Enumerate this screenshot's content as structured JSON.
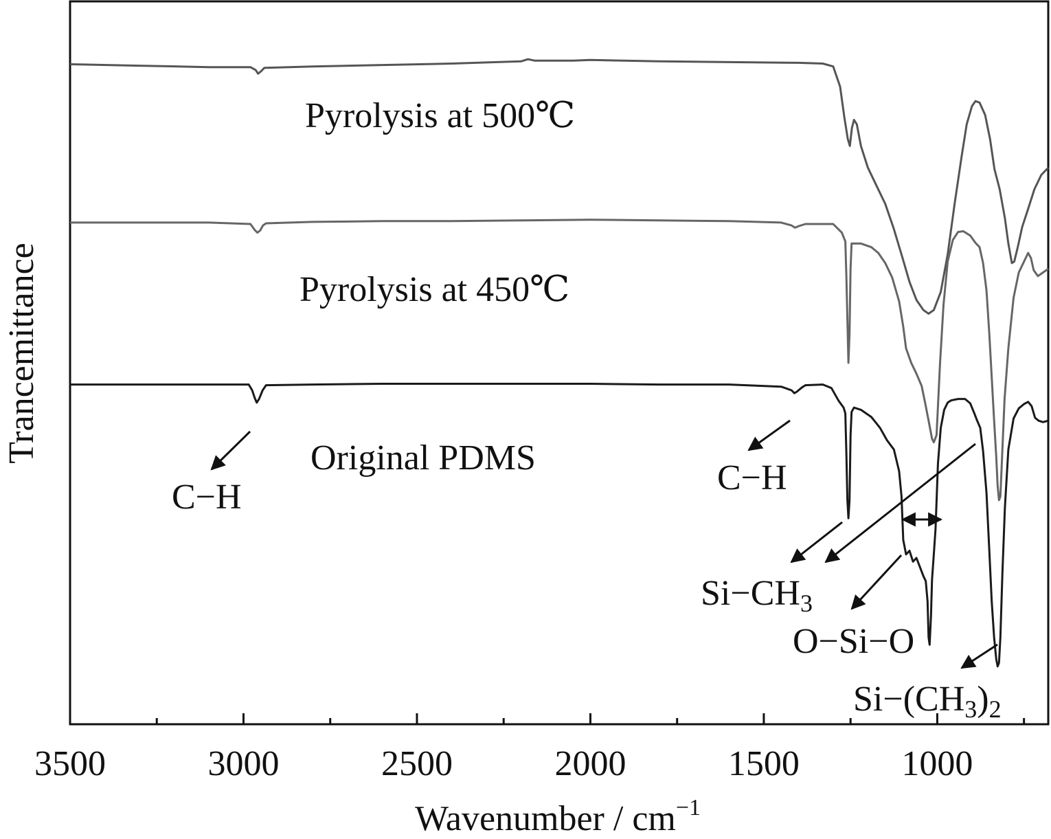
{
  "chart_data": {
    "type": "line",
    "title": "",
    "xlabel": "Wavenumber / cm",
    "xlabel_superscript": "−1",
    "ylabel": "Trancemittance",
    "xlim": [
      3500,
      680
    ],
    "x_reversed": true,
    "ylim": [
      0,
      1
    ],
    "y_ticks_shown": false,
    "grid": false,
    "legend": "none",
    "x_ticks": [
      3500,
      3000,
      2500,
      2000,
      1500,
      1000
    ],
    "x_tick_labels": [
      "3500",
      "3000",
      "2500",
      "2000",
      "1500",
      "1000"
    ],
    "x_minor_ticks": [
      3250,
      2750,
      2250,
      1750,
      1250,
      750
    ],
    "series": [
      {
        "name": "Pyrolysis at 500℃",
        "color": "#555555",
        "points": [
          [
            3500,
            0.913
          ],
          [
            3300,
            0.911
          ],
          [
            3100,
            0.909
          ],
          [
            2980,
            0.909
          ],
          [
            2965,
            0.905
          ],
          [
            2958,
            0.9
          ],
          [
            2950,
            0.903
          ],
          [
            2940,
            0.908
          ],
          [
            2800,
            0.91
          ],
          [
            2600,
            0.912
          ],
          [
            2400,
            0.914
          ],
          [
            2200,
            0.917
          ],
          [
            2180,
            0.92
          ],
          [
            2160,
            0.918
          ],
          [
            2050,
            0.918
          ],
          [
            2000,
            0.919
          ],
          [
            1800,
            0.917
          ],
          [
            1600,
            0.916
          ],
          [
            1400,
            0.915
          ],
          [
            1330,
            0.914
          ],
          [
            1300,
            0.91
          ],
          [
            1280,
            0.882
          ],
          [
            1268,
            0.84
          ],
          [
            1258,
            0.81
          ],
          [
            1252,
            0.8
          ],
          [
            1246,
            0.825
          ],
          [
            1240,
            0.836
          ],
          [
            1232,
            0.83
          ],
          [
            1220,
            0.8
          ],
          [
            1200,
            0.77
          ],
          [
            1175,
            0.745
          ],
          [
            1150,
            0.72
          ],
          [
            1125,
            0.685
          ],
          [
            1100,
            0.645
          ],
          [
            1080,
            0.612
          ],
          [
            1060,
            0.587
          ],
          [
            1040,
            0.573
          ],
          [
            1025,
            0.568
          ],
          [
            1010,
            0.573
          ],
          [
            990,
            0.598
          ],
          [
            970,
            0.65
          ],
          [
            950,
            0.72
          ],
          [
            930,
            0.785
          ],
          [
            915,
            0.83
          ],
          [
            900,
            0.855
          ],
          [
            890,
            0.862
          ],
          [
            878,
            0.86
          ],
          [
            862,
            0.843
          ],
          [
            848,
            0.81
          ],
          [
            835,
            0.768
          ],
          [
            820,
            0.74
          ],
          [
            805,
            0.7
          ],
          [
            795,
            0.665
          ],
          [
            785,
            0.638
          ],
          [
            778,
            0.64
          ],
          [
            768,
            0.66
          ],
          [
            755,
            0.688
          ],
          [
            740,
            0.71
          ],
          [
            720,
            0.74
          ],
          [
            700,
            0.76
          ],
          [
            680,
            0.77
          ]
        ]
      },
      {
        "name": "Pyrolysis at 450℃",
        "color": "#666666",
        "points": [
          [
            3500,
            0.694
          ],
          [
            3300,
            0.694
          ],
          [
            3100,
            0.694
          ],
          [
            2980,
            0.692
          ],
          [
            2968,
            0.684
          ],
          [
            2960,
            0.68
          ],
          [
            2952,
            0.683
          ],
          [
            2944,
            0.69
          ],
          [
            2935,
            0.693
          ],
          [
            2800,
            0.695
          ],
          [
            2600,
            0.696
          ],
          [
            2400,
            0.696
          ],
          [
            2200,
            0.697
          ],
          [
            2000,
            0.698
          ],
          [
            1800,
            0.697
          ],
          [
            1600,
            0.696
          ],
          [
            1450,
            0.694
          ],
          [
            1420,
            0.69
          ],
          [
            1410,
            0.687
          ],
          [
            1400,
            0.689
          ],
          [
            1380,
            0.692
          ],
          [
            1300,
            0.692
          ],
          [
            1275,
            0.68
          ],
          [
            1265,
            0.668
          ],
          [
            1262,
            0.62
          ],
          [
            1258,
            0.54
          ],
          [
            1256,
            0.5
          ],
          [
            1253,
            0.54
          ],
          [
            1250,
            0.63
          ],
          [
            1247,
            0.665
          ],
          [
            1240,
            0.665
          ],
          [
            1220,
            0.665
          ],
          [
            1190,
            0.66
          ],
          [
            1170,
            0.652
          ],
          [
            1150,
            0.638
          ],
          [
            1130,
            0.618
          ],
          [
            1110,
            0.585
          ],
          [
            1098,
            0.55
          ],
          [
            1090,
            0.52
          ],
          [
            1075,
            0.5
          ],
          [
            1060,
            0.485
          ],
          [
            1045,
            0.468
          ],
          [
            1035,
            0.445
          ],
          [
            1025,
            0.42
          ],
          [
            1015,
            0.395
          ],
          [
            1010,
            0.39
          ],
          [
            1002,
            0.4
          ],
          [
            992,
            0.5
          ],
          [
            982,
            0.58
          ],
          [
            970,
            0.64
          ],
          [
            955,
            0.67
          ],
          [
            940,
            0.681
          ],
          [
            925,
            0.682
          ],
          [
            905,
            0.676
          ],
          [
            890,
            0.666
          ],
          [
            878,
            0.66
          ],
          [
            868,
            0.638
          ],
          [
            858,
            0.6
          ],
          [
            850,
            0.54
          ],
          [
            843,
            0.48
          ],
          [
            836,
            0.42
          ],
          [
            830,
            0.37
          ],
          [
            826,
            0.33
          ],
          [
            822,
            0.31
          ],
          [
            818,
            0.315
          ],
          [
            813,
            0.37
          ],
          [
            806,
            0.45
          ],
          [
            795,
            0.52
          ],
          [
            780,
            0.59
          ],
          [
            765,
            0.625
          ],
          [
            750,
            0.64
          ],
          [
            738,
            0.652
          ],
          [
            730,
            0.645
          ],
          [
            722,
            0.628
          ],
          [
            710,
            0.62
          ],
          [
            695,
            0.625
          ],
          [
            680,
            0.63
          ]
        ]
      },
      {
        "name": "Original PDMS",
        "color": "#1a1a1a",
        "points": [
          [
            3500,
            0.47
          ],
          [
            3300,
            0.47
          ],
          [
            3100,
            0.47
          ],
          [
            2985,
            0.47
          ],
          [
            2975,
            0.462
          ],
          [
            2968,
            0.452
          ],
          [
            2962,
            0.445
          ],
          [
            2955,
            0.45
          ],
          [
            2945,
            0.462
          ],
          [
            2935,
            0.469
          ],
          [
            2800,
            0.47
          ],
          [
            2600,
            0.471
          ],
          [
            2400,
            0.471
          ],
          [
            2200,
            0.471
          ],
          [
            2000,
            0.471
          ],
          [
            1800,
            0.47
          ],
          [
            1600,
            0.47
          ],
          [
            1450,
            0.467
          ],
          [
            1420,
            0.462
          ],
          [
            1412,
            0.458
          ],
          [
            1405,
            0.46
          ],
          [
            1390,
            0.466
          ],
          [
            1380,
            0.469
          ],
          [
            1330,
            0.47
          ],
          [
            1305,
            0.465
          ],
          [
            1285,
            0.448
          ],
          [
            1270,
            0.438
          ],
          [
            1265,
            0.43
          ],
          [
            1262,
            0.375
          ],
          [
            1259,
            0.31
          ],
          [
            1256,
            0.285
          ],
          [
            1253,
            0.31
          ],
          [
            1250,
            0.4
          ],
          [
            1247,
            0.432
          ],
          [
            1240,
            0.438
          ],
          [
            1220,
            0.435
          ],
          [
            1190,
            0.425
          ],
          [
            1165,
            0.41
          ],
          [
            1145,
            0.393
          ],
          [
            1125,
            0.38
          ],
          [
            1110,
            0.35
          ],
          [
            1103,
            0.315
          ],
          [
            1098,
            0.255
          ],
          [
            1090,
            0.235
          ],
          [
            1080,
            0.24
          ],
          [
            1070,
            0.225
          ],
          [
            1060,
            0.23
          ],
          [
            1048,
            0.215
          ],
          [
            1040,
            0.205
          ],
          [
            1033,
            0.198
          ],
          [
            1028,
            0.17
          ],
          [
            1025,
            0.12
          ],
          [
            1022,
            0.11
          ],
          [
            1018,
            0.15
          ],
          [
            1015,
            0.2
          ],
          [
            1010,
            0.235
          ],
          [
            1005,
            0.27
          ],
          [
            998,
            0.36
          ],
          [
            990,
            0.41
          ],
          [
            980,
            0.435
          ],
          [
            970,
            0.445
          ],
          [
            960,
            0.448
          ],
          [
            940,
            0.45
          ],
          [
            920,
            0.45
          ],
          [
            905,
            0.444
          ],
          [
            893,
            0.43
          ],
          [
            885,
            0.42
          ],
          [
            876,
            0.41
          ],
          [
            868,
            0.378
          ],
          [
            858,
            0.32
          ],
          [
            850,
            0.24
          ],
          [
            843,
            0.17
          ],
          [
            836,
            0.12
          ],
          [
            830,
            0.09
          ],
          [
            826,
            0.08
          ],
          [
            822,
            0.085
          ],
          [
            818,
            0.12
          ],
          [
            812,
            0.21
          ],
          [
            805,
            0.3
          ],
          [
            795,
            0.38
          ],
          [
            780,
            0.423
          ],
          [
            765,
            0.437
          ],
          [
            750,
            0.443
          ],
          [
            738,
            0.446
          ],
          [
            728,
            0.44
          ],
          [
            718,
            0.424
          ],
          [
            708,
            0.42
          ],
          [
            695,
            0.418
          ],
          [
            680,
            0.42
          ]
        ]
      }
    ],
    "annotations": [
      {
        "text": "C−H",
        "wavenumber": 2965
      },
      {
        "text": "C−H",
        "wavenumber": 1410
      },
      {
        "text": "Si−CH",
        "subscript": "3",
        "wavenumber": 1258
      },
      {
        "text": "O−Si−O",
        "wavenumber_range": [
          1100,
          1000
        ]
      },
      {
        "text": "Si−(CH",
        "subscript": "3",
        "suffix": ")",
        "suffix_subscript": "2",
        "wavenumber": 800
      }
    ]
  }
}
